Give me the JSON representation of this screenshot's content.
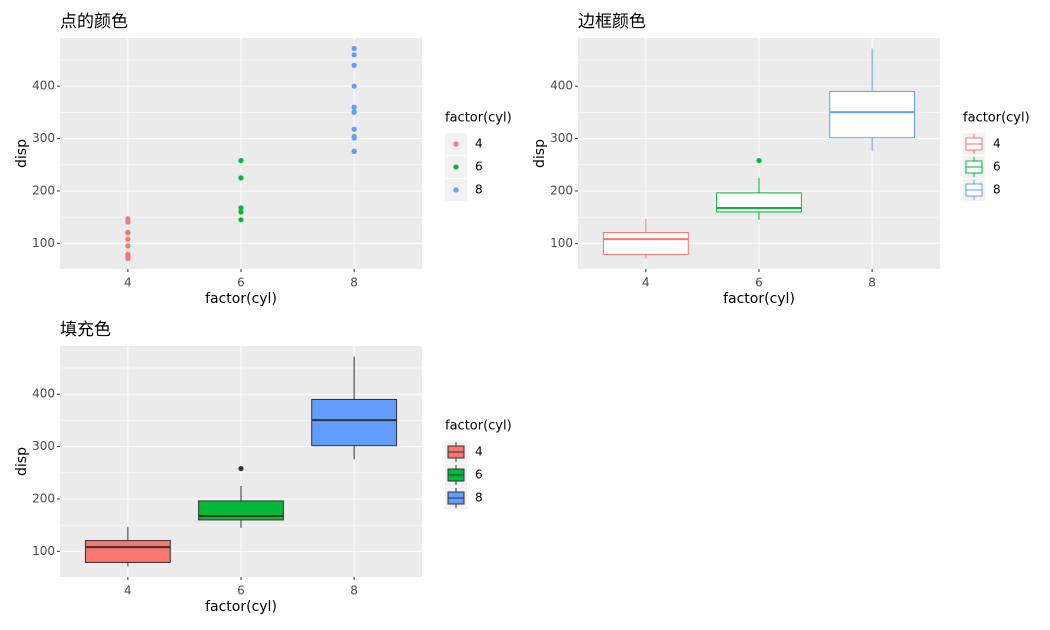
{
  "chart_data": [
    {
      "type": "scatter",
      "title": "点的颜色",
      "x_label": "factor(cyl)",
      "y_label": "disp",
      "categories": [
        "4",
        "6",
        "8"
      ],
      "legend_title": "factor(cyl)",
      "ylim": [
        51.05,
        492.05
      ],
      "yticks": [
        100,
        200,
        300,
        400
      ],
      "grid": true,
      "minor_grid": true,
      "series": [
        {
          "name": "4",
          "color": "#F8766D",
          "values": [
            108,
            146.7,
            140.8,
            78.7,
            75.7,
            71.1,
            120.1,
            79,
            120.3,
            95.1,
            121
          ]
        },
        {
          "name": "6",
          "color": "#00BA38",
          "values": [
            160,
            160,
            258,
            225,
            167.6,
            167.6,
            145
          ]
        },
        {
          "name": "8",
          "color": "#619CFF",
          "values": [
            360,
            360,
            275.8,
            275.8,
            275.8,
            472,
            460,
            440,
            318,
            304,
            350,
            400,
            351,
            301
          ]
        }
      ]
    },
    {
      "type": "boxplot",
      "style": "outline",
      "title": "边框颜色",
      "x_label": "factor(cyl)",
      "y_label": "disp",
      "categories": [
        "4",
        "6",
        "8"
      ],
      "legend_title": "factor(cyl)",
      "ylim": [
        51.05,
        492.05
      ],
      "yticks": [
        100,
        200,
        300,
        400
      ],
      "grid": true,
      "minor_grid": true,
      "series": [
        {
          "name": "4",
          "color": "#F8766D",
          "min": 71.1,
          "q1": 78.85,
          "median": 108,
          "q3": 120.65,
          "max": 146.7,
          "outliers": []
        },
        {
          "name": "6",
          "color": "#00BA38",
          "min": 145,
          "q1": 160,
          "median": 167.6,
          "q3": 196.3,
          "max": 225,
          "outliers": [
            258
          ]
        },
        {
          "name": "8",
          "color": "#619CFF",
          "min": 275.8,
          "q1": 301.75,
          "median": 350.5,
          "q3": 390,
          "max": 472,
          "outliers": []
        }
      ]
    },
    {
      "type": "boxplot",
      "style": "fill",
      "title": "填充色",
      "x_label": "factor(cyl)",
      "y_label": "disp",
      "categories": [
        "4",
        "6",
        "8"
      ],
      "legend_title": "factor(cyl)",
      "ylim": [
        51.05,
        492.05
      ],
      "yticks": [
        100,
        200,
        300,
        400
      ],
      "grid": true,
      "minor_grid": true,
      "series": [
        {
          "name": "4",
          "color": "#F8766D",
          "min": 71.1,
          "q1": 78.85,
          "median": 108,
          "q3": 120.65,
          "max": 146.7,
          "outliers": []
        },
        {
          "name": "6",
          "color": "#00BA38",
          "min": 145,
          "q1": 160,
          "median": 167.6,
          "q3": 196.3,
          "max": 225,
          "outliers": [
            258
          ]
        },
        {
          "name": "8",
          "color": "#619CFF",
          "min": 275.8,
          "q1": 301.75,
          "median": 350.5,
          "q3": 390,
          "max": 472,
          "outliers": []
        }
      ]
    }
  ]
}
